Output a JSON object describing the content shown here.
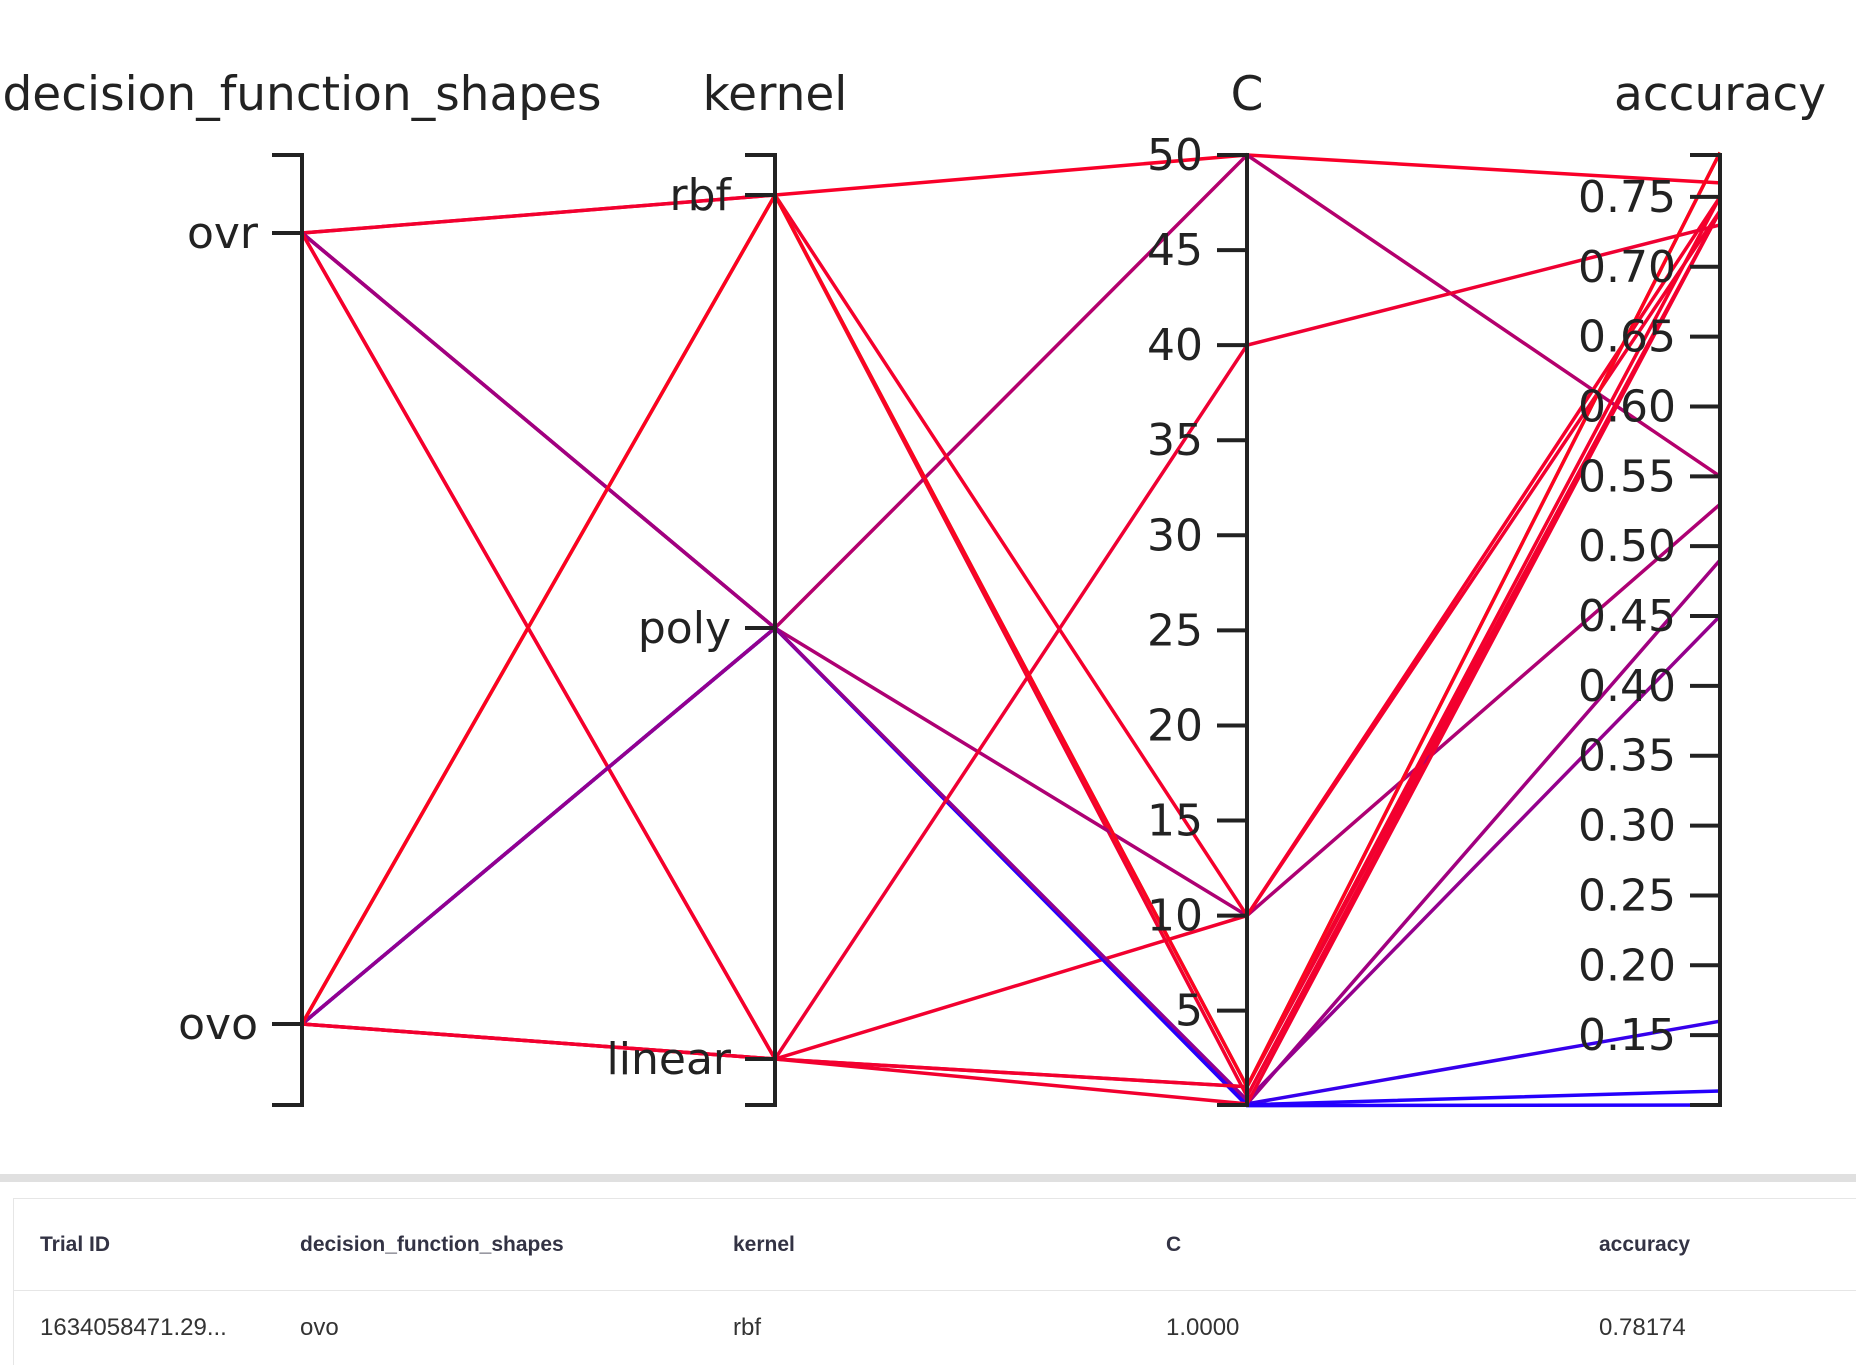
{
  "chart_data": {
    "type": "parallel_coordinates",
    "axes": [
      {
        "name": "decision_function_shapes",
        "kind": "categorical",
        "categories": [
          "ovo",
          "ovr"
        ],
        "tick_labels": [
          "ovo",
          "ovr"
        ]
      },
      {
        "name": "kernel",
        "kind": "categorical",
        "categories": [
          "linear",
          "poly",
          "rbf"
        ],
        "tick_labels": [
          "linear",
          "poly",
          "rbf"
        ]
      },
      {
        "name": "C",
        "kind": "numeric",
        "range": [
          0.04,
          50
        ],
        "ticks": [
          5,
          10,
          15,
          20,
          25,
          30,
          35,
          40,
          45,
          50
        ],
        "tick_labels": [
          "5",
          "10",
          "15",
          "20",
          "25",
          "30",
          "35",
          "40",
          "45",
          "50"
        ]
      },
      {
        "name": "accuracy",
        "kind": "numeric",
        "range": [
          0.1,
          0.78
        ],
        "ticks": [
          0.15,
          0.2,
          0.25,
          0.3,
          0.35,
          0.4,
          0.45,
          0.5,
          0.55,
          0.6,
          0.65,
          0.7,
          0.75
        ],
        "tick_labels": [
          "0.15",
          "0.20",
          "0.25",
          "0.30",
          "0.35",
          "0.40",
          "0.45",
          "0.50",
          "0.55",
          "0.60",
          "0.65",
          "0.70",
          "0.75"
        ]
      }
    ],
    "colorscale": {
      "low": "#2200ff",
      "high": "#ff0022",
      "domain": [
        0.1,
        0.78
      ]
    },
    "highlight_color": "#33ee22",
    "trials": [
      {
        "decision_function_shapes": "ovr",
        "kernel": "rbf",
        "C": 50,
        "accuracy": 0.76
      },
      {
        "decision_function_shapes": "ovr",
        "kernel": "rbf",
        "C": 0.5,
        "accuracy": 0.74
      },
      {
        "decision_function_shapes": "ovr",
        "kernel": "poly",
        "C": 50,
        "accuracy": 0.55
      },
      {
        "decision_function_shapes": "ovr",
        "kernel": "poly",
        "C": 10,
        "accuracy": 0.53
      },
      {
        "decision_function_shapes": "ovr",
        "kernel": "poly",
        "C": 0.1,
        "accuracy": 0.49
      },
      {
        "decision_function_shapes": "ovr",
        "kernel": "linear",
        "C": 10,
        "accuracy": 0.74
      },
      {
        "decision_function_shapes": "ovr",
        "kernel": "linear",
        "C": 1,
        "accuracy": 0.75
      },
      {
        "decision_function_shapes": "ovo",
        "kernel": "rbf",
        "C": 1,
        "accuracy": 0.78174,
        "highlighted": true
      },
      {
        "decision_function_shapes": "ovo",
        "kernel": "rbf",
        "C": 10,
        "accuracy": 0.75
      },
      {
        "decision_function_shapes": "ovo",
        "kernel": "poly",
        "C": 0.1,
        "accuracy": 0.16
      },
      {
        "decision_function_shapes": "ovo",
        "kernel": "poly",
        "C": 0.01,
        "accuracy": 0.1
      },
      {
        "decision_function_shapes": "ovo",
        "kernel": "poly",
        "C": 0.05,
        "accuracy": 0.11
      },
      {
        "decision_function_shapes": "ovo",
        "kernel": "poly",
        "C": 0.3,
        "accuracy": 0.45
      },
      {
        "decision_function_shapes": "ovo",
        "kernel": "linear",
        "C": 40,
        "accuracy": 0.73
      },
      {
        "decision_function_shapes": "ovo",
        "kernel": "linear",
        "C": 1,
        "accuracy": 0.74
      },
      {
        "decision_function_shapes": "ovo",
        "kernel": "linear",
        "C": 0.1,
        "accuracy": 0.74
      }
    ]
  },
  "table": {
    "columns": [
      "Trial ID",
      "decision_function_shapes",
      "kernel",
      "C",
      "accuracy"
    ],
    "rows": [
      [
        "1634058471.29...",
        "ovo",
        "rbf",
        "1.0000",
        "0.78174"
      ]
    ]
  }
}
